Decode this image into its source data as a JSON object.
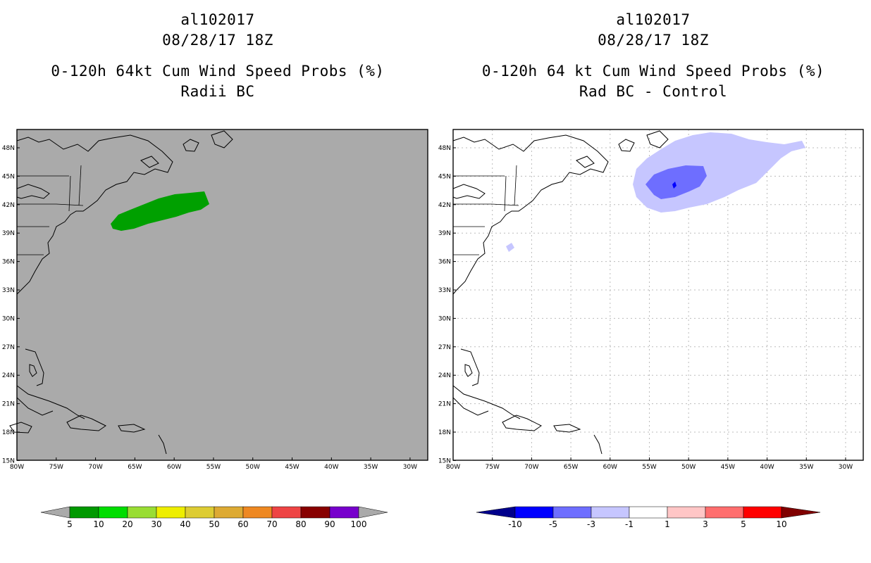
{
  "colors": {
    "ocean_left": "#aaaaaa",
    "green_prob": "#00a000",
    "light_blue": "#c6c6ff",
    "mid_blue": "#6e6eff",
    "dark_blue": "#0000ff",
    "navy": "#00008c",
    "grid": "#bbbbbb"
  },
  "axes": {
    "lat_labels": [
      "48N",
      "45N",
      "42N",
      "39N",
      "36N",
      "33N",
      "30N",
      "27N",
      "24N",
      "21N",
      "18N",
      "15N"
    ],
    "lon_labels": [
      "80W",
      "75W",
      "70W",
      "65W",
      "60W",
      "55W",
      "50W",
      "45W",
      "40W",
      "35W",
      "30W"
    ]
  },
  "left_panel": {
    "storm_id": "al102017",
    "datetime": "08/28/17 18Z",
    "product": "0-120h 64kt Cum Wind Speed Probs (%)",
    "subtitle": "Radii BC",
    "legend": {
      "labels": [
        "5",
        "10",
        "20",
        "30",
        "40",
        "50",
        "60",
        "70",
        "80",
        "90",
        "100"
      ],
      "colors": [
        "#009900",
        "#00dd00",
        "#99dd33",
        "#eeee00",
        "#ddcc33",
        "#ddaa33",
        "#ee8822",
        "#ee4444",
        "#880000",
        "#7700cc"
      ]
    }
  },
  "right_panel": {
    "storm_id": "al102017",
    "datetime": "08/28/17 18Z",
    "product": "0-120h 64 kt Cum Wind Speed Probs (%)",
    "subtitle": "Rad BC - Control",
    "legend": {
      "labels": [
        "-10",
        "-5",
        "-3",
        "-1",
        "1",
        "3",
        "5",
        "10"
      ],
      "colors": [
        "#0000ff",
        "#6e6eff",
        "#c6c6ff",
        "#ffffff",
        "#ffc6c6",
        "#ff6e6e",
        "#ff0000"
      ]
    }
  }
}
